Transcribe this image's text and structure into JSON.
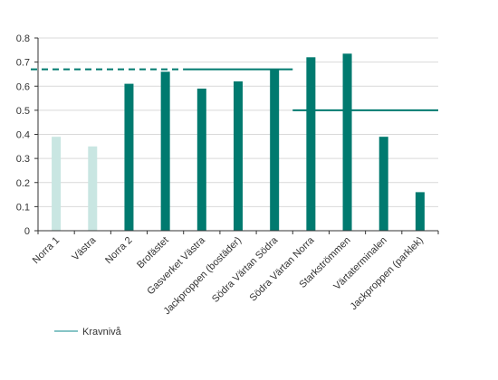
{
  "chart_data": {
    "type": "bar",
    "title": "",
    "xlabel": "",
    "ylabel": "",
    "ylim": [
      0,
      0.8
    ],
    "yticks": [
      "0",
      "0.1",
      "0.2",
      "0.3",
      "0.4",
      "0.5",
      "0.6",
      "0.7",
      "0.8"
    ],
    "grid": "horizontal",
    "legend": {
      "position": "bottom-left",
      "label": "Kravnivå"
    },
    "categories": [
      "Norra 1",
      "Västra",
      "Norra 2",
      "Brofästet",
      "Gasverket Västra",
      "Jackproppen (bostäder)",
      "Södra Värtan Södra",
      "Södra Värtan Norra",
      "Starkströmmen",
      "Värtaterminalen",
      "Jackproppen (parklek)"
    ],
    "values": [
      0.39,
      0.35,
      0.61,
      0.66,
      0.59,
      0.62,
      0.67,
      0.72,
      0.735,
      0.39,
      0.16
    ],
    "bar_colors": [
      "#c9e6e2",
      "#c9e6e2",
      "#007a6f",
      "#007a6f",
      "#007a6f",
      "#007a6f",
      "#007a6f",
      "#007a6f",
      "#007a6f",
      "#007a6f",
      "#007a6f"
    ],
    "kravniva": [
      {
        "value": 0.67,
        "from_category": 0,
        "to_category": 4,
        "style": "dashed"
      },
      {
        "value": 0.67,
        "from_category": 4,
        "to_category": 7,
        "style": "solid"
      },
      {
        "value": 0.5,
        "from_category": 7,
        "to_category": 11,
        "style": "solid"
      }
    ],
    "colors": {
      "bar_primary": "#007a6f",
      "bar_light": "#c9e6e2",
      "threshold_line": "#007a6f",
      "legend_line": "#5fb0b4",
      "grid": "#d9d9d9",
      "axis": "#333333"
    }
  }
}
